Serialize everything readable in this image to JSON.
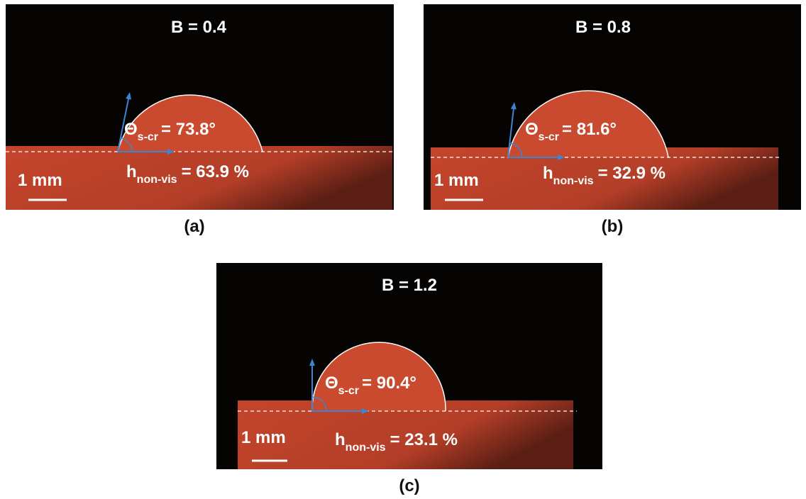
{
  "panels": [
    {
      "title": "B = 0.4",
      "angle_symbol": "Θ",
      "angle_subscript": "s-cr",
      "angle_value": "= 73.8°",
      "h_symbol": "h",
      "h_subscript": "non-vis",
      "h_value": "= 63.9 %",
      "scale": "1 mm",
      "caption": "(a)"
    },
    {
      "title": "B = 0.8",
      "angle_symbol": "Θ",
      "angle_subscript": "s-cr",
      "angle_value": "= 81.6°",
      "h_symbol": "h",
      "h_subscript": "non-vis",
      "h_value": "= 32.9 %",
      "scale": "1 mm",
      "caption": "(b)"
    },
    {
      "title": "B = 1.2",
      "angle_symbol": "Θ",
      "angle_subscript": "s-cr",
      "angle_value": "= 90.4°",
      "h_symbol": "h",
      "h_subscript": "non-vis",
      "h_value": "= 23.1 %",
      "scale": "1 mm",
      "caption": "(c)"
    }
  ]
}
